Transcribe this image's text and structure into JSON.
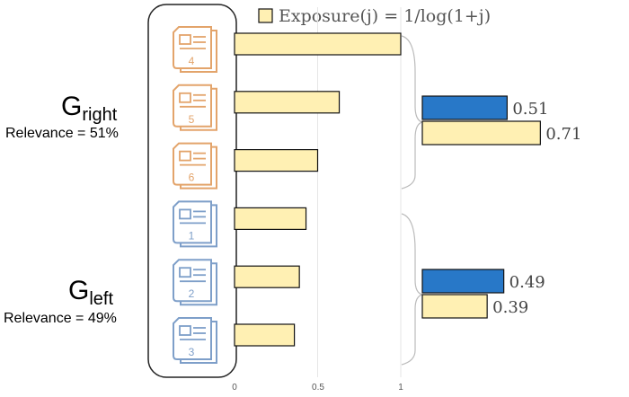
{
  "legend": {
    "label": "Exposure(j) = 1/log(1+j)",
    "swatch_color": "#FFF0B3",
    "stroke_color": "#111111"
  },
  "groups": [
    {
      "name_main": "G",
      "name_sub": "right",
      "relevance": "Relevance = 51%"
    },
    {
      "name_main": "G",
      "name_sub": "left",
      "relevance": "Relevance = 49%"
    }
  ],
  "chart_data": [
    {
      "type": "bar",
      "orientation": "horizontal",
      "categories": [
        "4",
        "5",
        "6",
        "1",
        "2",
        "3"
      ],
      "category_colors": [
        "#E3A46B",
        "#E3A46B",
        "#E3A46B",
        "#7E9FC9",
        "#7E9FC9",
        "#7E9FC9"
      ],
      "values": [
        1.0,
        0.63,
        0.5,
        0.43,
        0.39,
        0.36
      ],
      "series_color": "#FFF0B3",
      "xticks": [
        "0",
        "0.5",
        "1"
      ],
      "xlim": [
        0,
        1
      ],
      "grid": "vertical"
    },
    {
      "type": "bar",
      "orientation": "horizontal",
      "groups": [
        {
          "group": "right",
          "bars": [
            {
              "value": 0.51,
              "label": "0.51",
              "color": "#2878C8"
            },
            {
              "value": 0.71,
              "label": "0.71",
              "color": "#FFF0B3"
            }
          ]
        },
        {
          "group": "left",
          "bars": [
            {
              "value": 0.49,
              "label": "0.49",
              "color": "#2878C8"
            },
            {
              "value": 0.39,
              "label": "0.39",
              "color": "#FFF0B3"
            }
          ]
        }
      ]
    }
  ]
}
